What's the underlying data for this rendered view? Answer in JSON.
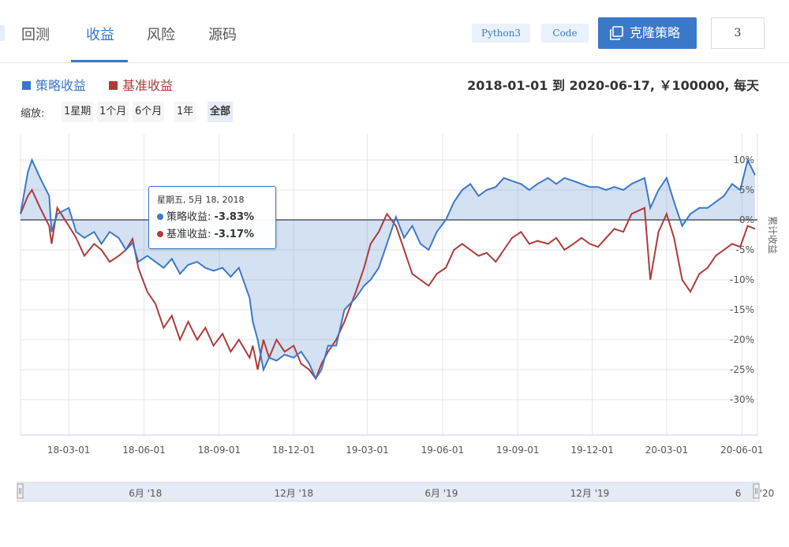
{
  "tabs": [
    {
      "label": "回测"
    },
    {
      "label": "收益"
    },
    {
      "label": "风险"
    },
    {
      "label": "源码"
    }
  ],
  "tags": {
    "python": "Python3",
    "code": "Code"
  },
  "clone_button": {
    "label": "克隆策略",
    "icon": "copy-icon"
  },
  "clone_count": "3",
  "legend": {
    "strategy": {
      "label": "策略收益",
      "color": "#3b78c9"
    },
    "benchmark": {
      "label": "基准收益",
      "color": "#b03a3a"
    }
  },
  "range_info": "2018-01-01 到 2020-06-17, ￥100000, 每天",
  "zoom": {
    "label": "缩放:",
    "options": [
      "1星期",
      "1个月",
      "6个月",
      "1年",
      "全部"
    ],
    "active": "全部"
  },
  "tooltip": {
    "date": "星期五, 5月 18, 2018",
    "strategy_label": "策略收益:",
    "strategy_value": "-3.83%",
    "benchmark_label": "基准收益:",
    "benchmark_value": "-3.17%"
  },
  "chart_data": {
    "type": "area",
    "ylabel": "累计收益",
    "ylim": [
      -30,
      10
    ],
    "yticks": [
      "10%",
      "5%",
      "0%",
      "-5%",
      "-10%",
      "-15%",
      "-20%",
      "-25%",
      "-30%"
    ],
    "ytick_values": [
      10,
      5,
      0,
      -5,
      -10,
      -15,
      -20,
      -25,
      -30
    ],
    "xticks": [
      "18-03-01",
      "18-06-01",
      "18-09-01",
      "18-12-01",
      "19-03-01",
      "19-06-01",
      "19-09-01",
      "19-12-01",
      "20-03-01",
      "20-06-01"
    ],
    "xtick_dates": [
      "2018-03-01",
      "2018-06-01",
      "2018-09-01",
      "2018-12-01",
      "2019-03-01",
      "2019-06-01",
      "2019-09-01",
      "2019-12-01",
      "2020-03-01",
      "2020-06-01"
    ],
    "navigator_labels": [
      "6月 '18",
      "12月 '18",
      "6月 '19",
      "12月 '19",
      "6",
      "'20"
    ],
    "navigator_dates": [
      "2018-06-01",
      "2018-12-01",
      "2019-06-01",
      "2019-12-01",
      "2020-06-01",
      "2020-06-17"
    ],
    "dates": [
      "2018-01-01",
      "2018-01-10",
      "2018-01-15",
      "2018-01-25",
      "2018-02-05",
      "2018-02-08",
      "2018-02-15",
      "2018-03-01",
      "2018-03-10",
      "2018-03-20",
      "2018-04-01",
      "2018-04-10",
      "2018-04-20",
      "2018-05-01",
      "2018-05-10",
      "2018-05-18",
      "2018-05-25",
      "2018-06-05",
      "2018-06-15",
      "2018-06-25",
      "2018-07-05",
      "2018-07-15",
      "2018-07-25",
      "2018-08-05",
      "2018-08-15",
      "2018-08-25",
      "2018-09-05",
      "2018-09-15",
      "2018-09-25",
      "2018-10-08",
      "2018-10-12",
      "2018-10-18",
      "2018-10-25",
      "2018-11-01",
      "2018-11-10",
      "2018-11-20",
      "2018-12-01",
      "2018-12-10",
      "2018-12-20",
      "2018-12-28",
      "2019-01-04",
      "2019-01-12",
      "2019-01-22",
      "2019-02-01",
      "2019-02-15",
      "2019-02-25",
      "2019-03-05",
      "2019-03-15",
      "2019-03-25",
      "2019-04-05",
      "2019-04-15",
      "2019-04-25",
      "2019-05-05",
      "2019-05-15",
      "2019-05-25",
      "2019-06-05",
      "2019-06-15",
      "2019-06-25",
      "2019-07-05",
      "2019-07-15",
      "2019-07-25",
      "2019-08-05",
      "2019-08-15",
      "2019-08-25",
      "2019-09-05",
      "2019-09-15",
      "2019-09-25",
      "2019-10-08",
      "2019-10-18",
      "2019-10-28",
      "2019-11-08",
      "2019-11-18",
      "2019-11-28",
      "2019-12-08",
      "2019-12-18",
      "2019-12-28",
      "2020-01-08",
      "2020-01-18",
      "2020-02-03",
      "2020-02-10",
      "2020-02-20",
      "2020-03-01",
      "2020-03-10",
      "2020-03-20",
      "2020-03-30",
      "2020-04-10",
      "2020-04-20",
      "2020-04-30",
      "2020-05-10",
      "2020-05-20",
      "2020-05-30",
      "2020-06-08",
      "2020-06-17"
    ],
    "series": [
      {
        "name": "策略收益",
        "color": "#3b78c9",
        "values": [
          1.0,
          8.0,
          10.0,
          7.0,
          4.0,
          -2.0,
          1.0,
          2.0,
          -2.0,
          -3.0,
          -2.0,
          -4.0,
          -2.0,
          -3.0,
          -5.0,
          -3.83,
          -7.0,
          -6.0,
          -7.0,
          -8.0,
          -6.5,
          -9.0,
          -7.5,
          -7.0,
          -8.0,
          -8.5,
          -8.0,
          -9.5,
          -8.0,
          -13.0,
          -17.0,
          -20.0,
          -25.0,
          -23.0,
          -23.5,
          -22.5,
          -23.0,
          -22.0,
          -24.0,
          -26.5,
          -25.0,
          -21.0,
          -21.0,
          -15.0,
          -13.0,
          -11.0,
          -10.0,
          -8.0,
          -4.0,
          0.5,
          -3.0,
          -1.0,
          -4.0,
          -5.0,
          -2.0,
          0.0,
          3.0,
          5.0,
          6.0,
          4.0,
          5.0,
          5.5,
          7.0,
          6.5,
          6.0,
          5.0,
          6.0,
          7.0,
          6.0,
          7.0,
          6.5,
          6.0,
          5.5,
          5.5,
          5.0,
          5.5,
          5.0,
          6.0,
          7.0,
          2.0,
          5.0,
          7.0,
          3.0,
          -1.0,
          1.0,
          2.0,
          2.0,
          3.0,
          4.0,
          6.0,
          5.0,
          10.0,
          7.5
        ]
      },
      {
        "name": "基准收益",
        "color": "#b03a3a",
        "values": [
          1.0,
          4.0,
          5.0,
          2.0,
          -1.0,
          -4.0,
          2.0,
          -1.0,
          -3.0,
          -6.0,
          -4.0,
          -5.0,
          -7.0,
          -6.0,
          -5.0,
          -3.17,
          -8.0,
          -12.0,
          -14.0,
          -18.0,
          -16.0,
          -20.0,
          -17.0,
          -20.0,
          -18.0,
          -21.0,
          -19.0,
          -22.0,
          -20.0,
          -23.0,
          -21.0,
          -25.0,
          -20.0,
          -23.0,
          -20.0,
          -22.0,
          -21.0,
          -24.0,
          -25.0,
          -26.5,
          -24.0,
          -22.0,
          -20.0,
          -17.0,
          -12.0,
          -8.0,
          -4.0,
          -2.0,
          1.0,
          -1.0,
          -5.0,
          -9.0,
          -10.0,
          -11.0,
          -9.0,
          -8.0,
          -5.0,
          -4.0,
          -5.0,
          -6.0,
          -5.5,
          -7.0,
          -5.0,
          -3.0,
          -2.0,
          -4.0,
          -3.5,
          -4.0,
          -3.0,
          -5.0,
          -4.0,
          -3.0,
          -4.0,
          -4.5,
          -3.0,
          -1.5,
          -2.0,
          1.0,
          2.0,
          -10.0,
          -2.0,
          1.0,
          -3.0,
          -10.0,
          -12.0,
          -9.0,
          -8.0,
          -6.0,
          -5.0,
          -4.0,
          -4.5,
          -1.0,
          -1.5
        ]
      }
    ],
    "grid": true,
    "legend_position": "top-left"
  }
}
